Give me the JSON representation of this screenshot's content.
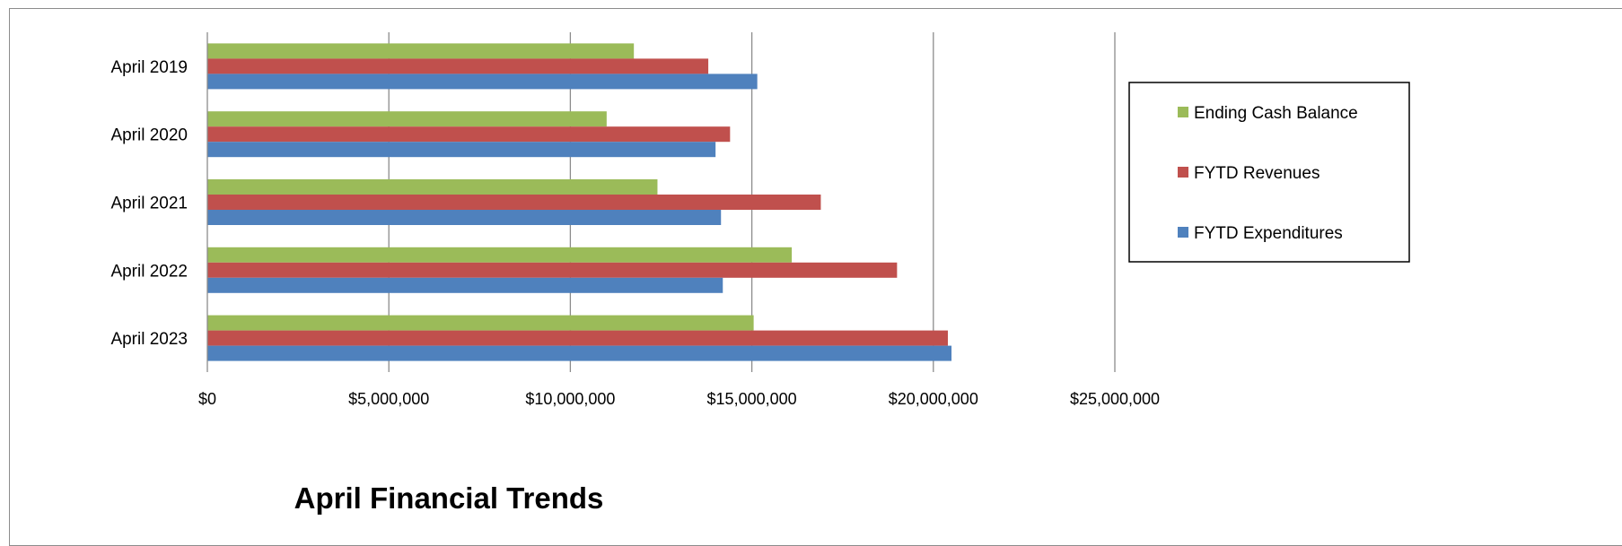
{
  "chart_data": {
    "type": "bar",
    "orientation": "horizontal",
    "title": "April Financial Trends",
    "categories": [
      "April 2019",
      "April 2020",
      "April 2021",
      "April 2022",
      "April 2023"
    ],
    "series": [
      {
        "name": "Ending Cash Balance",
        "color": "#9BBB59",
        "values": [
          11750000,
          11000000,
          12400000,
          16100000,
          15050000
        ]
      },
      {
        "name": "FYTD Revenues",
        "color": "#C0504D",
        "values": [
          13800000,
          14400000,
          16900000,
          19000000,
          20400000
        ]
      },
      {
        "name": "FYTD Expenditures",
        "color": "#4F81BD",
        "values": [
          15150000,
          14000000,
          14150000,
          14200000,
          20500000
        ]
      }
    ],
    "xlim": [
      0,
      25000000
    ],
    "xticks": [
      0,
      5000000,
      10000000,
      15000000,
      20000000,
      25000000
    ],
    "xtick_labels": [
      "$0",
      "$5,000,000",
      "$10,000,000",
      "$15,000,000",
      "$20,000,000",
      "$25,000,000"
    ],
    "grid": true,
    "legend_position": "right"
  }
}
